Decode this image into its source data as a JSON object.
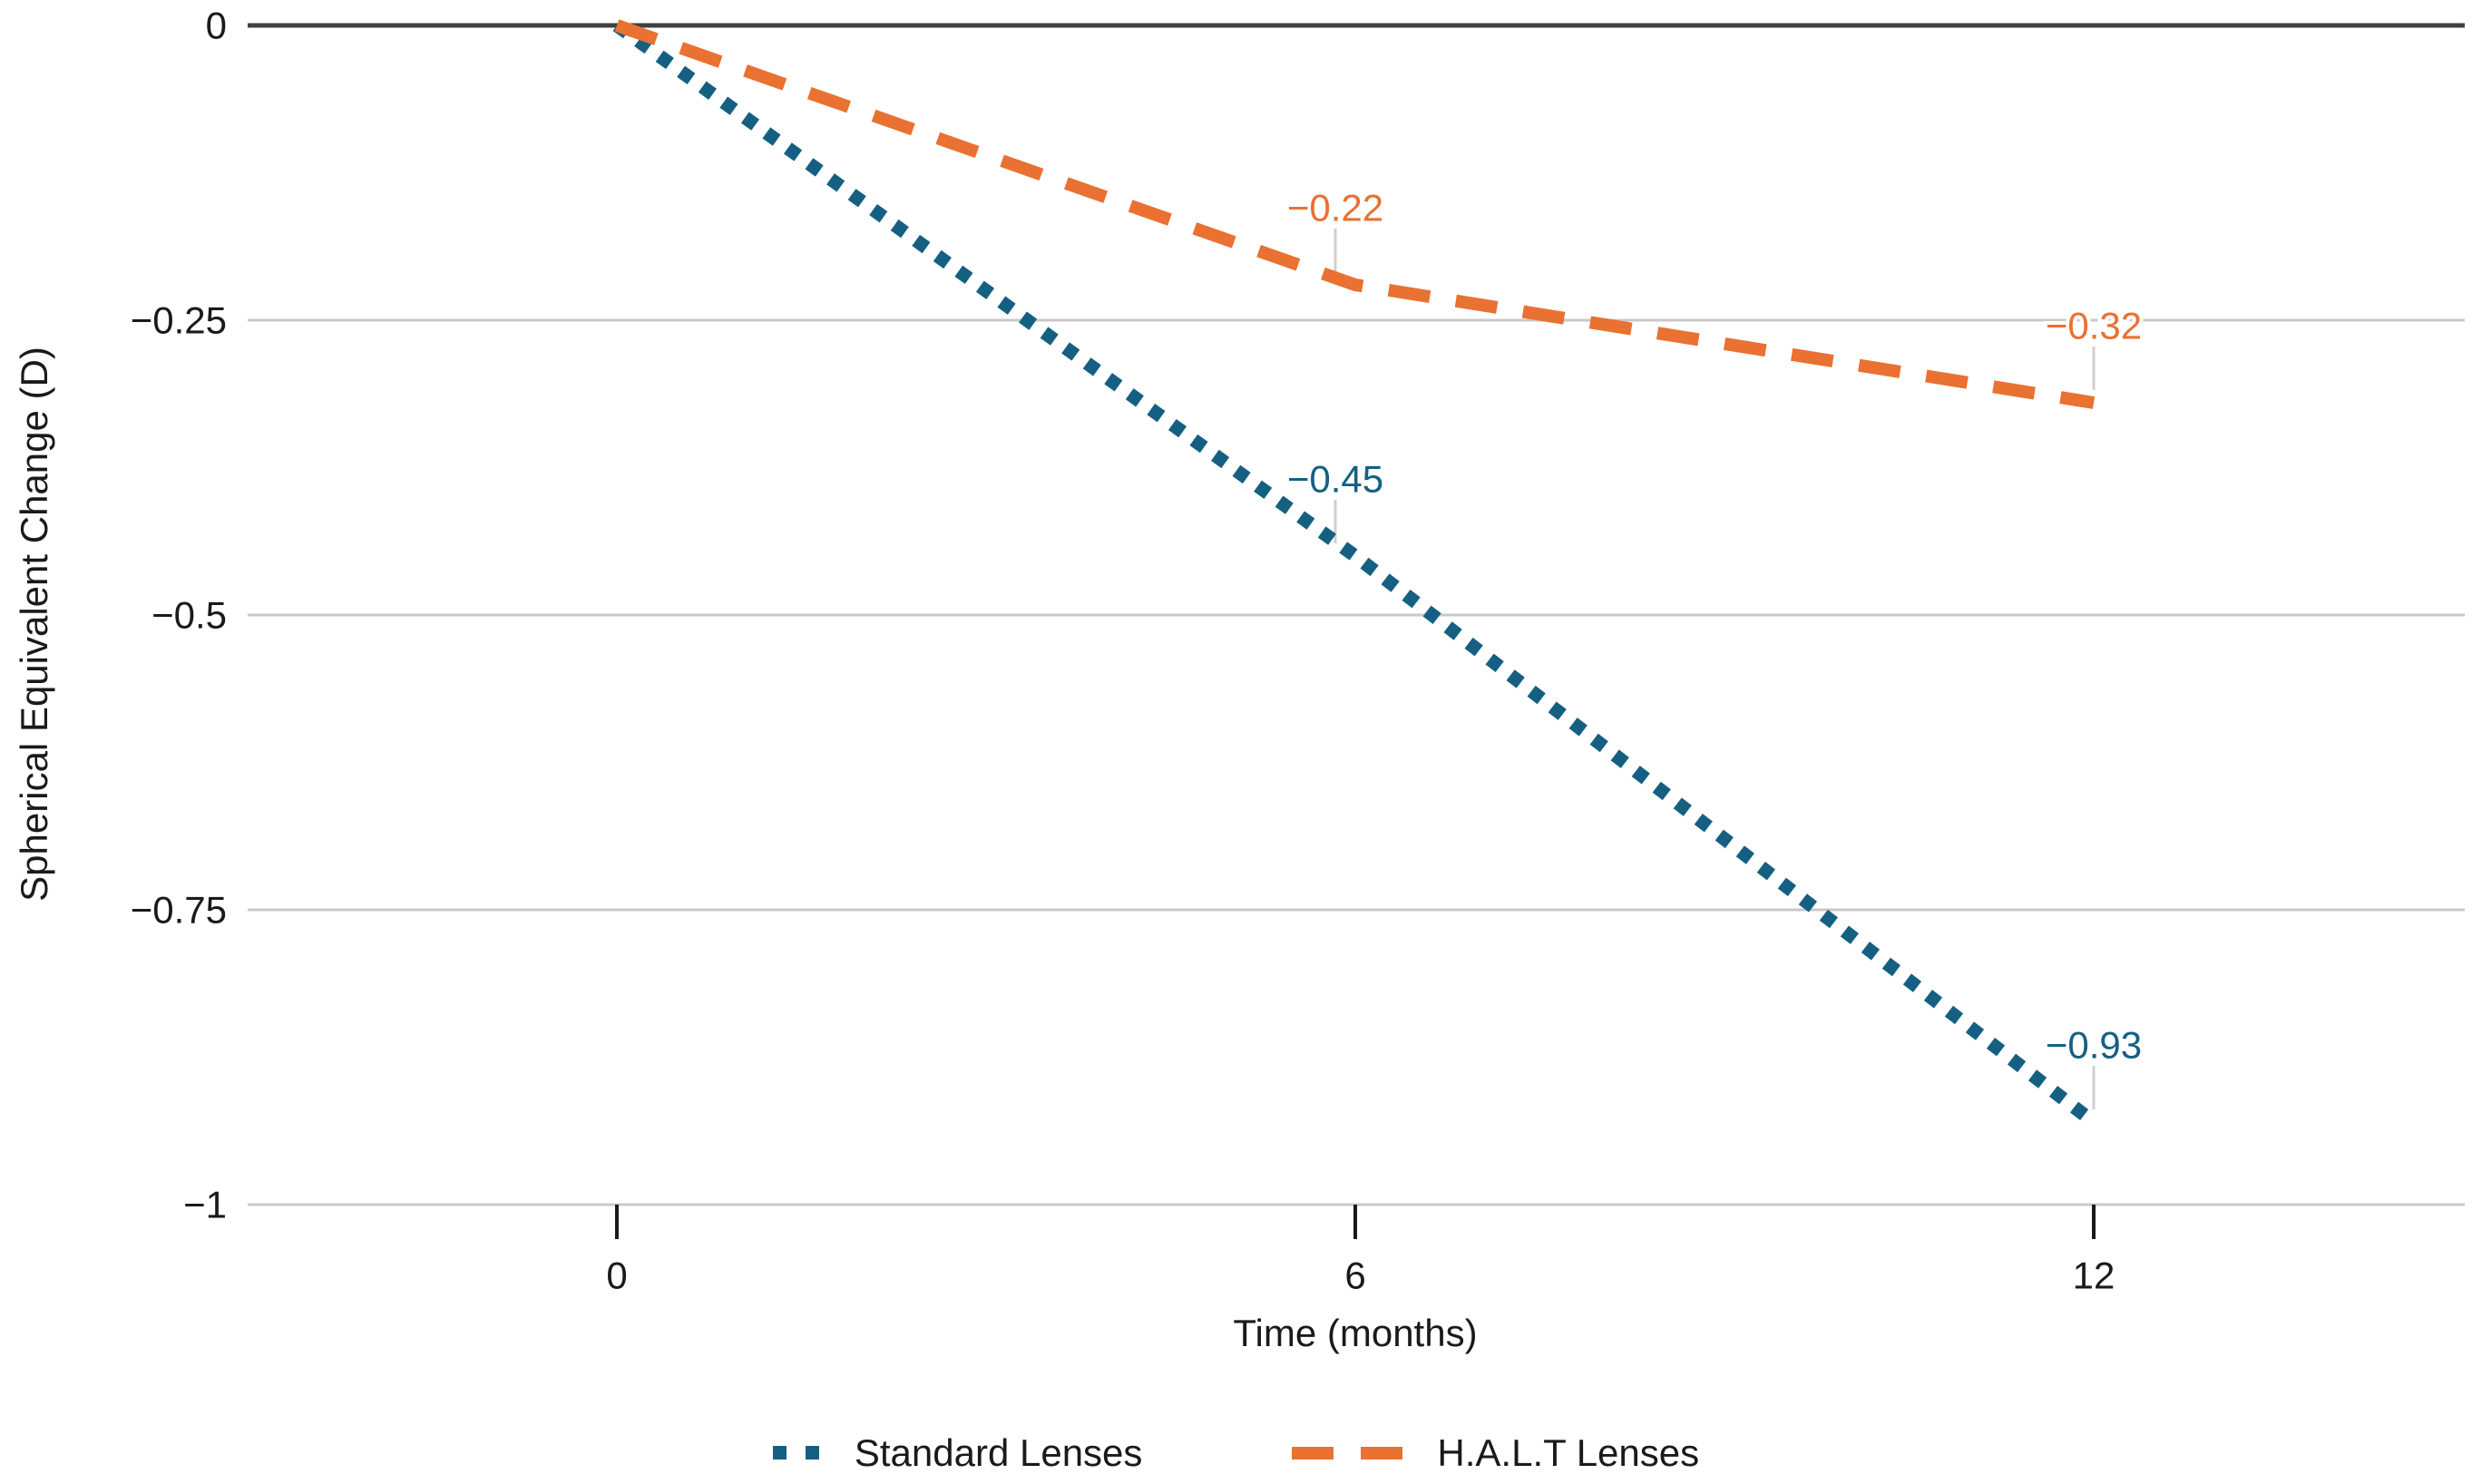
{
  "figure": {
    "background_color": "#ffffff",
    "zero_line_color": "#404040",
    "grid_color": "#c9c9c9",
    "tick_color": "#1a1a1a",
    "text_color": "#1a1a1a",
    "connector_color": "#cfcfcf"
  },
  "chart_data": {
    "type": "line",
    "x": [
      0,
      6,
      12
    ],
    "x_tick_labels": [
      "0",
      "6",
      "12"
    ],
    "xlabel": "Time (months)",
    "ylabel": "Spherical Equivalent Change (D)",
    "ylim": [
      -1,
      0
    ],
    "yticks": [
      0,
      -0.25,
      -0.5,
      -0.75,
      -1
    ],
    "ytick_labels": [
      "0",
      "−0.25",
      "−0.5",
      "−0.75",
      "−1"
    ],
    "grid": true,
    "legend_position": "bottom",
    "series": [
      {
        "name": "Standard Lenses",
        "color": "#156082",
        "line_style": "dotted",
        "values": [
          0,
          -0.45,
          -0.93
        ],
        "data_labels": [
          "",
          "−0.45",
          "−0.93"
        ]
      },
      {
        "name": "H.A.L.T Lenses",
        "color": "#E97132",
        "line_style": "dashed",
        "values": [
          0,
          -0.22,
          -0.32
        ],
        "data_labels": [
          "",
          "−0.22",
          "−0.32"
        ]
      }
    ]
  }
}
